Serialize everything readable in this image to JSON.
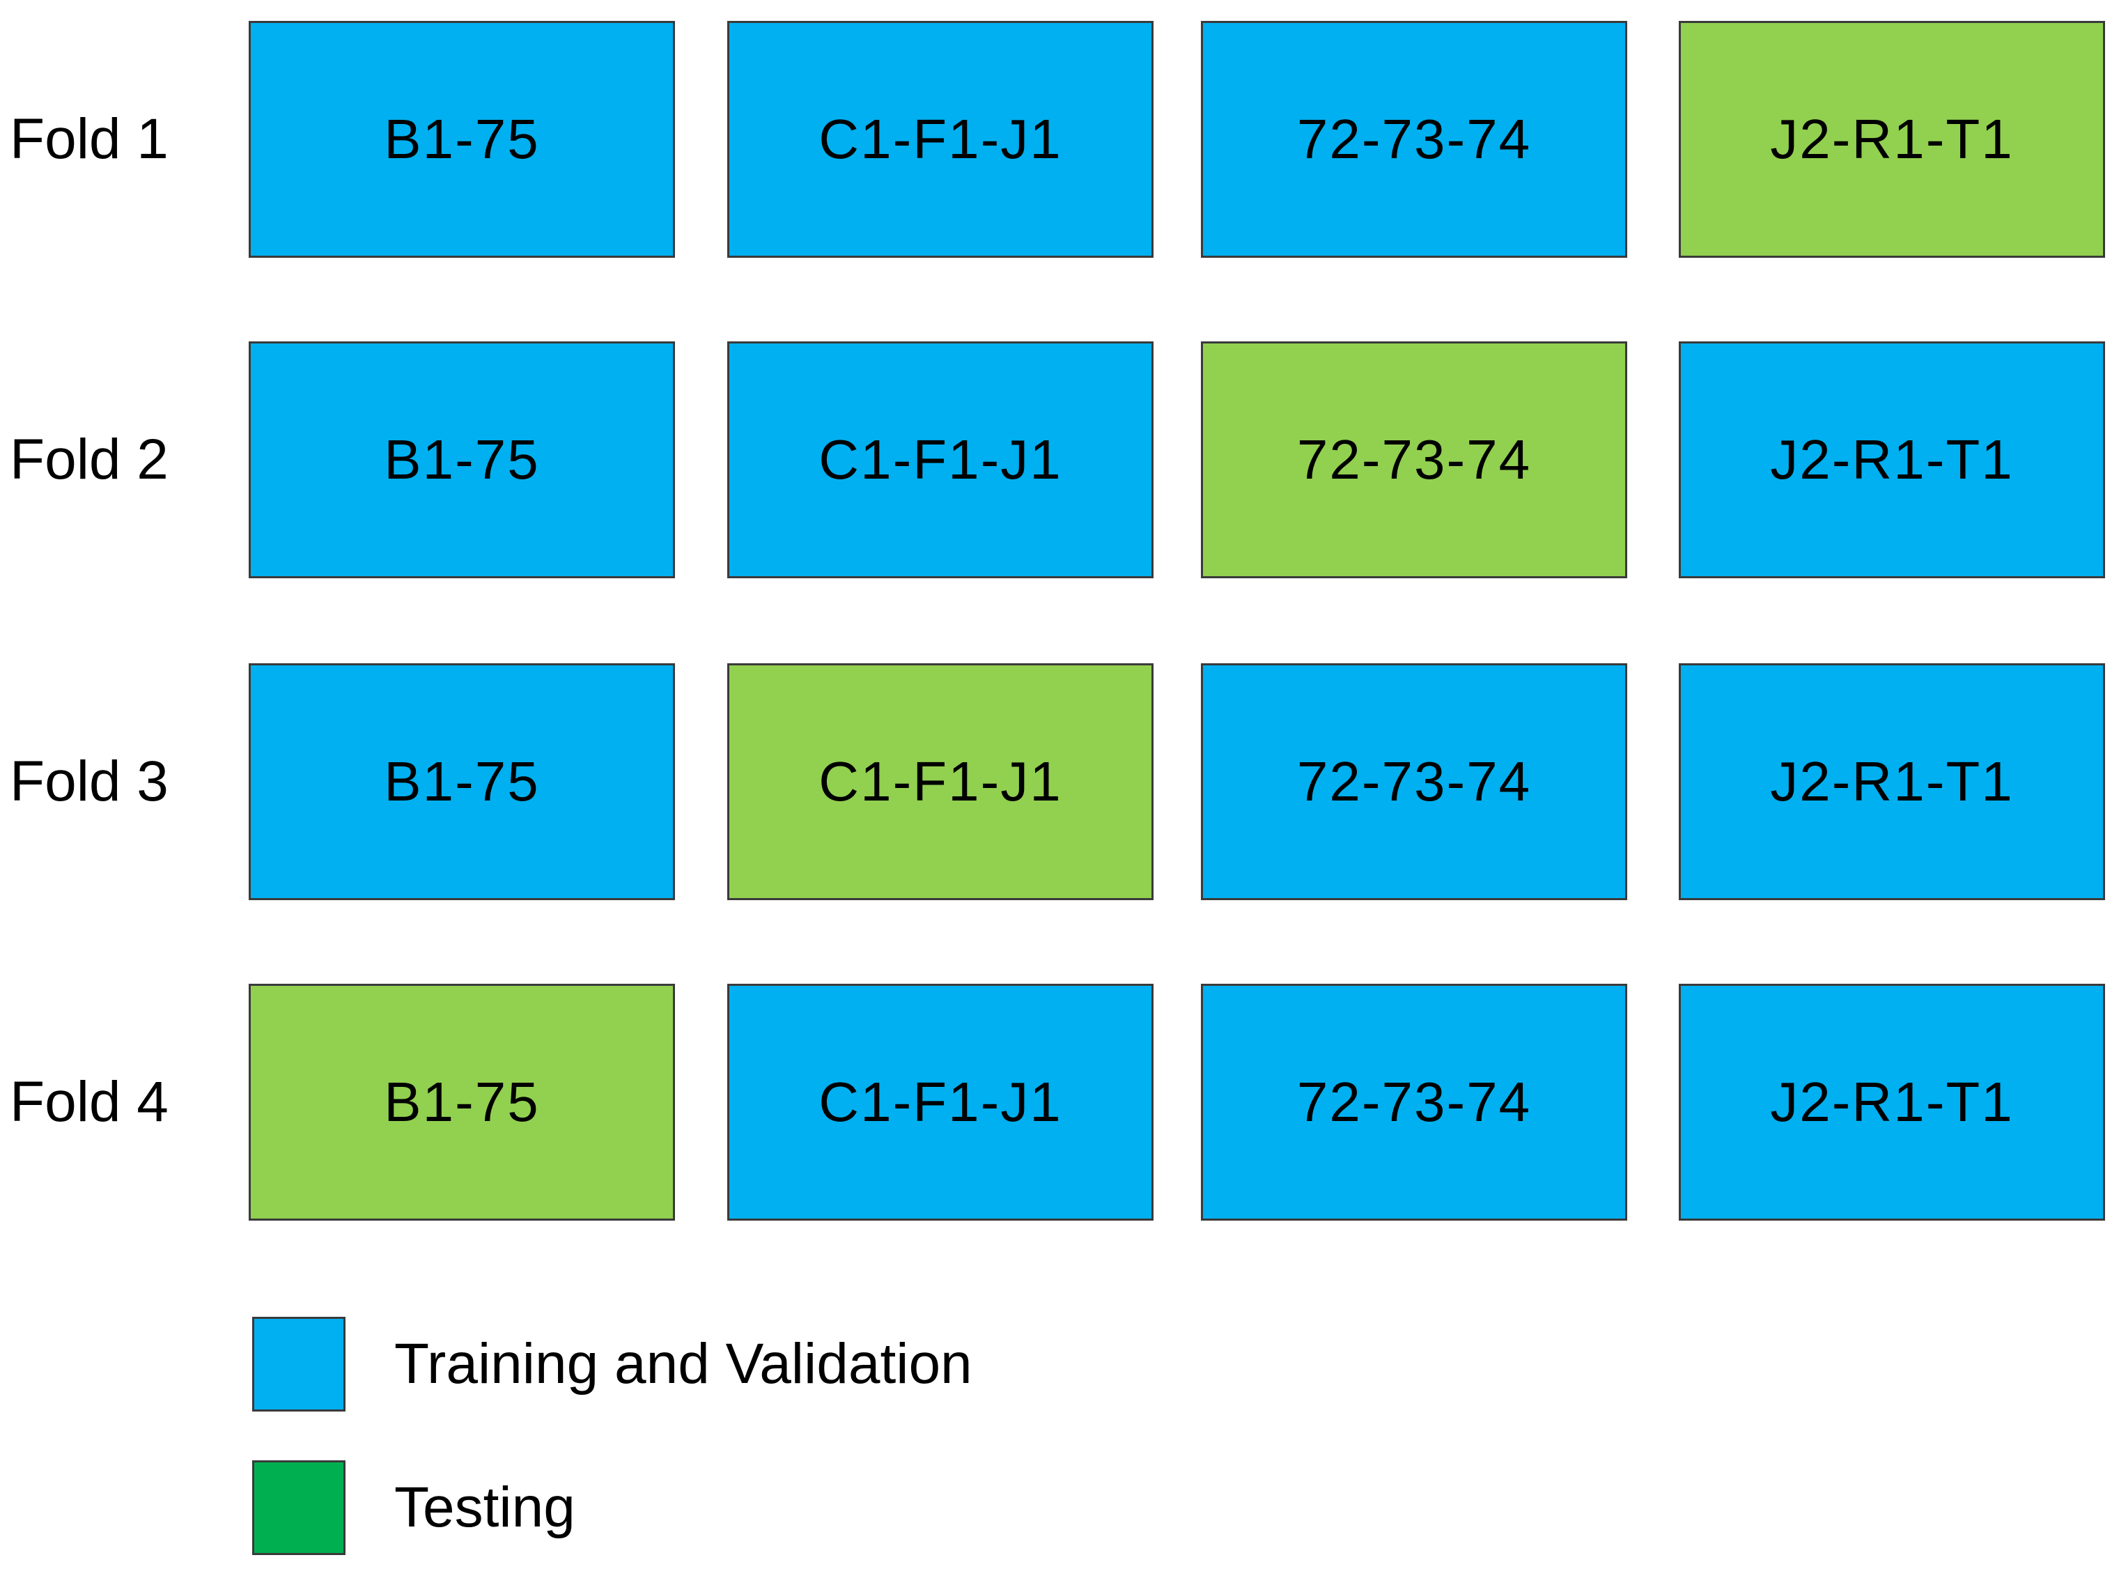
{
  "colors": {
    "training": "#00b0f0",
    "testing_cell": "#92d050",
    "testing_legend": "#00b050",
    "border": "#3a3a3a"
  },
  "folds": [
    {
      "label": "Fold 1",
      "cells": [
        {
          "text": "B1-75",
          "role": "training"
        },
        {
          "text": "C1-F1-J1",
          "role": "training"
        },
        {
          "text": "72-73-74",
          "role": "training"
        },
        {
          "text": "J2-R1-T1",
          "role": "testing"
        }
      ]
    },
    {
      "label": "Fold 2",
      "cells": [
        {
          "text": "B1-75",
          "role": "training"
        },
        {
          "text": "C1-F1-J1",
          "role": "training"
        },
        {
          "text": "72-73-74",
          "role": "testing"
        },
        {
          "text": "J2-R1-T1",
          "role": "training"
        }
      ]
    },
    {
      "label": "Fold 3",
      "cells": [
        {
          "text": "B1-75",
          "role": "training"
        },
        {
          "text": "C1-F1-J1",
          "role": "testing"
        },
        {
          "text": "72-73-74",
          "role": "training"
        },
        {
          "text": "J2-R1-T1",
          "role": "training"
        }
      ]
    },
    {
      "label": "Fold 4",
      "cells": [
        {
          "text": "B1-75",
          "role": "testing"
        },
        {
          "text": "C1-F1-J1",
          "role": "training"
        },
        {
          "text": "72-73-74",
          "role": "training"
        },
        {
          "text": "J2-R1-T1",
          "role": "training"
        }
      ]
    }
  ],
  "legend": {
    "training_label": "Training and Validation",
    "testing_label": "Testing"
  }
}
